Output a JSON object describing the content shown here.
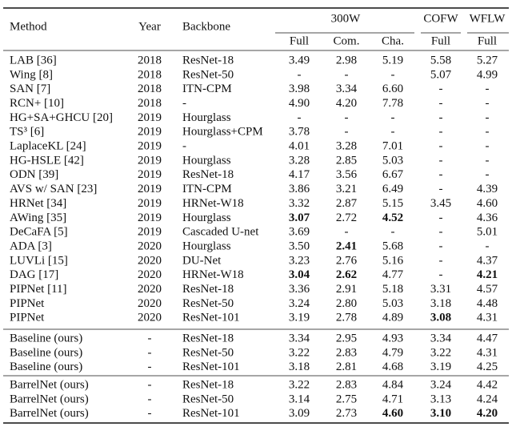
{
  "table": {
    "header": {
      "method": "Method",
      "year": "Year",
      "backbone": "Backbone",
      "groups": [
        "300W",
        "COFW",
        "WFLW"
      ],
      "subheaders": [
        "Full",
        "Com.",
        "Cha.",
        "Full",
        "Full"
      ]
    },
    "groups": [
      [
        [
          "LAB [36]",
          "2018",
          "ResNet-18",
          "3.49",
          "2.98",
          "5.19",
          "5.58",
          "5.27"
        ],
        [
          "Wing [8]",
          "2018",
          "ResNet-50",
          "-",
          "-",
          "-",
          "5.07",
          "4.99"
        ],
        [
          "SAN [7]",
          "2018",
          "ITN-CPM",
          "3.98",
          "3.34",
          "6.60",
          "-",
          "-"
        ],
        [
          "RCN+ [10]",
          "2018",
          "-",
          "4.90",
          "4.20",
          "7.78",
          "-",
          "-"
        ],
        [
          "HG+SA+GHCU [20]",
          "2019",
          "Hourglass",
          "-",
          "-",
          "-",
          "-",
          "-"
        ],
        [
          "TS³ [6]",
          "2019",
          "Hourglass+CPM",
          "3.78",
          "-",
          "-",
          "-",
          "-"
        ],
        [
          "LaplaceKL [24]",
          "2019",
          "-",
          "4.01",
          "3.28",
          "7.01",
          "-",
          "-"
        ],
        [
          "HG-HSLE [42]",
          "2019",
          "Hourglass",
          "3.28",
          "2.85",
          "5.03",
          "-",
          "-"
        ],
        [
          "ODN [39]",
          "2019",
          "ResNet-18",
          "4.17",
          "3.56",
          "6.67",
          "-",
          "-"
        ],
        [
          "AVS w/ SAN [23]",
          "2019",
          "ITN-CPM",
          "3.86",
          "3.21",
          "6.49",
          "-",
          "4.39"
        ],
        [
          "HRNet [34]",
          "2019",
          "HRNet-W18",
          "3.32",
          "2.87",
          "5.15",
          "3.45",
          "4.60"
        ],
        [
          "AWing [35]",
          "2019",
          "Hourglass",
          "3.07",
          "2.72",
          "4.52",
          "-",
          "4.36"
        ],
        [
          "DeCaFA [5]",
          "2019",
          "Cascaded U-net",
          "3.69",
          "-",
          "-",
          "-",
          "5.01"
        ],
        [
          "ADA [3]",
          "2020",
          "Hourglass",
          "3.50",
          "2.41",
          "5.68",
          "-",
          "-"
        ],
        [
          "LUVLi [15]",
          "2020",
          "DU-Net",
          "3.23",
          "2.76",
          "5.16",
          "-",
          "4.37"
        ],
        [
          "DAG [17]",
          "2020",
          "HRNet-W18",
          "3.04",
          "2.62",
          "4.77",
          "-",
          "4.21"
        ],
        [
          "PIPNet [11]",
          "2020",
          "ResNet-18",
          "3.36",
          "2.91",
          "5.18",
          "3.31",
          "4.57"
        ],
        [
          "PIPNet",
          "2020",
          "ResNet-50",
          "3.24",
          "2.80",
          "5.03",
          "3.18",
          "4.48"
        ],
        [
          "PIPNet",
          "2020",
          "ResNet-101",
          "3.19",
          "2.78",
          "4.89",
          "3.08",
          "4.31"
        ]
      ],
      [
        [
          "Baseline (ours)",
          "-",
          "ResNet-18",
          "3.34",
          "2.95",
          "4.93",
          "3.34",
          "4.47"
        ],
        [
          "Baseline (ours)",
          "-",
          "ResNet-50",
          "3.22",
          "2.83",
          "4.79",
          "3.22",
          "4.31"
        ],
        [
          "Baseline (ours)",
          "-",
          "ResNet-101",
          "3.18",
          "2.81",
          "4.68",
          "3.19",
          "4.25"
        ]
      ],
      [
        [
          "BarrelNet (ours)",
          "-",
          "ResNet-18",
          "3.22",
          "2.83",
          "4.84",
          "3.24",
          "4.42"
        ],
        [
          "BarrelNet (ours)",
          "-",
          "ResNet-50",
          "3.14",
          "2.75",
          "4.71",
          "3.13",
          "4.24"
        ],
        [
          "BarrelNet (ours)",
          "-",
          "ResNet-101",
          "3.09",
          "2.73",
          "4.60",
          "3.10",
          "4.20"
        ]
      ]
    ],
    "highlights": [
      {
        "group": 0,
        "row": 11,
        "col": 3,
        "color": "#1a1aff"
      },
      {
        "group": 0,
        "row": 11,
        "col": 5,
        "color": "#e8161b"
      },
      {
        "group": 0,
        "row": 13,
        "col": 4,
        "color": "#e8161b"
      },
      {
        "group": 0,
        "row": 15,
        "col": 3,
        "color": "#e8161b"
      },
      {
        "group": 0,
        "row": 15,
        "col": 4,
        "color": "#1a1aff"
      },
      {
        "group": 0,
        "row": 15,
        "col": 7,
        "color": "#1a1aff"
      },
      {
        "group": 0,
        "row": 18,
        "col": 6,
        "color": "#e8161b"
      },
      {
        "group": 2,
        "row": 2,
        "col": 5,
        "color": "#1a1aff"
      },
      {
        "group": 2,
        "row": 2,
        "col": 6,
        "color": "#1a1aff"
      },
      {
        "group": 2,
        "row": 2,
        "col": 7,
        "color": "#e8161b"
      }
    ]
  }
}
